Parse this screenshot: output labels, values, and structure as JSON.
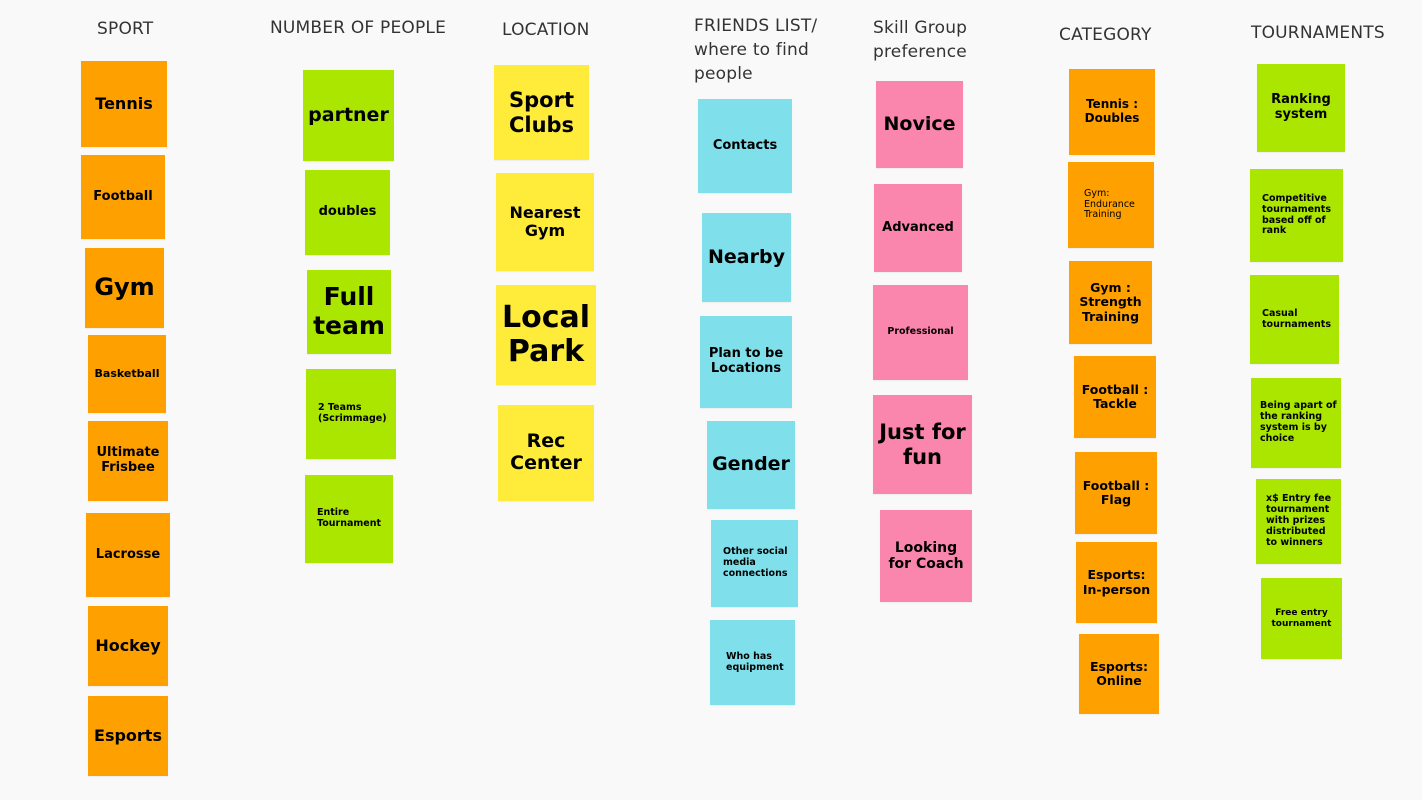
{
  "headers": {
    "sport": "SPORT",
    "people": "NUMBER OF PEOPLE",
    "location": "LOCATION",
    "friends": "FRIENDS LIST/\nwhere to find\npeople",
    "skill": "Skill  Group\npreference",
    "category": "CATEGORY",
    "tournaments": "TOURNAMENTS"
  },
  "sport": [
    "Tennis",
    "Football",
    "Gym",
    "Basketball",
    "Ultimate Frisbee",
    "Lacrosse",
    "Hockey",
    "Esports"
  ],
  "people": [
    "partner",
    "doubles",
    "Full team",
    "2 Teams (Scrimmage)",
    "Entire Tournament"
  ],
  "location": [
    "Sport Clubs",
    "Nearest Gym",
    "Local Park",
    "Rec Center"
  ],
  "friends": [
    "Contacts",
    "Nearby",
    "Plan to be Locations",
    "Gender",
    "Other social media connections",
    "Who has equipment"
  ],
  "skill": [
    "Novice",
    "Advanced",
    "Professional",
    "Just for fun",
    "Looking for Coach"
  ],
  "category": [
    "Tennis : Doubles",
    "Gym: Endurance Training",
    "Gym : Strength Training",
    "Football : Tackle",
    "Football : Flag",
    "Esports: In-person",
    "Esports: Online"
  ],
  "tournaments": [
    "Ranking system",
    "Competitive tournaments based off of rank",
    "Casual tournaments",
    "Being apart of the ranking system is by choice",
    "x$ Entry fee tournament with prizes distributed to winners",
    "Free entry tournament"
  ],
  "colors": {
    "orange": "#fda000",
    "green": "#aae600",
    "yellow": "#feeb3a",
    "cyan": "#7fdfea",
    "pink": "#fb86ad"
  }
}
